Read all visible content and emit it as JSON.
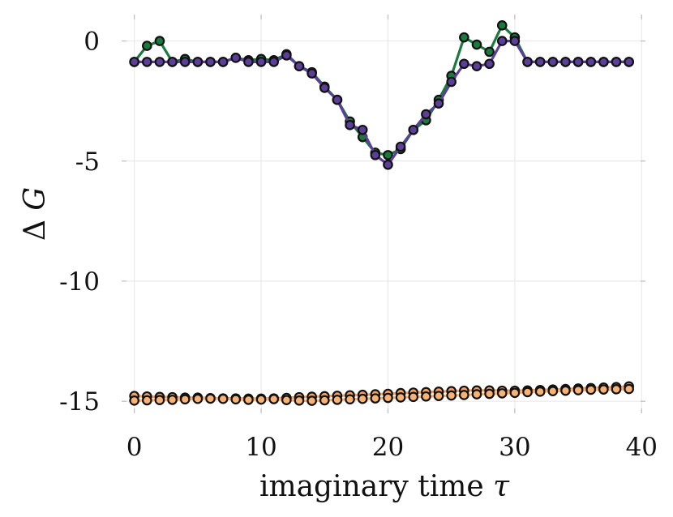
{
  "chart_data": {
    "type": "line",
    "title": "",
    "xlabel": "imaginary time",
    "xlabel_symbol": "τ",
    "ylabel_prefix": "Δ",
    "ylabel_symbol": "G",
    "xlim": [
      -1,
      40.3
    ],
    "ylim": [
      -15.5,
      1.1
    ],
    "grid": true,
    "legend": "none",
    "xticks": [
      0,
      10,
      20,
      30,
      40
    ],
    "xtick_labels": [
      "0",
      "10",
      "20",
      "30",
      "40"
    ],
    "yticks": [
      0,
      -5,
      -10,
      -15
    ],
    "ytick_labels": [
      "0",
      "-5",
      "-10",
      "-15"
    ],
    "series": [
      {
        "color": "#1a7a3e",
        "x": [
          0,
          1,
          2,
          3,
          4,
          5,
          6,
          7,
          8,
          9,
          10,
          11,
          12,
          13,
          14,
          15,
          16,
          17,
          18,
          19,
          20,
          21,
          22,
          23,
          24,
          25,
          26,
          27,
          28,
          29,
          30,
          31,
          32,
          33,
          34,
          35,
          36,
          37,
          38,
          39
        ],
        "values": [
          -0.87,
          -0.2,
          0.0,
          -0.87,
          -0.75,
          -0.87,
          -0.87,
          -0.87,
          -0.7,
          -0.8,
          -0.75,
          -0.8,
          -0.55,
          -1.05,
          -1.3,
          -1.9,
          -2.45,
          -3.35,
          -4.0,
          -4.65,
          -4.75,
          -4.5,
          -3.7,
          -3.3,
          -2.45,
          -1.45,
          0.15,
          -0.15,
          -0.45,
          0.65,
          0.15,
          -0.87,
          -0.87,
          -0.87,
          -0.87,
          -0.87,
          -0.87,
          -0.87,
          -0.87,
          -0.87
        ]
      },
      {
        "color": "#5b3f99",
        "x": [
          0,
          1,
          2,
          3,
          4,
          5,
          6,
          7,
          8,
          9,
          10,
          11,
          12,
          13,
          14,
          15,
          16,
          17,
          18,
          19,
          20,
          21,
          22,
          23,
          24,
          25,
          26,
          27,
          28,
          29,
          30,
          31,
          32,
          33,
          34,
          35,
          36,
          37,
          38,
          39
        ],
        "values": [
          -0.87,
          -0.87,
          -0.87,
          -0.87,
          -0.87,
          -0.87,
          -0.87,
          -0.87,
          -0.7,
          -0.87,
          -0.87,
          -0.87,
          -0.6,
          -1.05,
          -1.35,
          -1.95,
          -2.45,
          -3.5,
          -3.7,
          -4.75,
          -5.15,
          -4.4,
          -3.7,
          -3.05,
          -2.6,
          -1.7,
          -0.95,
          -1.05,
          -0.95,
          0.0,
          0.0,
          -0.87,
          -0.87,
          -0.87,
          -0.87,
          -0.87,
          -0.87,
          -0.87,
          -0.87,
          -0.87
        ]
      },
      {
        "color": "#f4a064",
        "x": [
          0,
          1,
          2,
          3,
          4,
          5,
          6,
          7,
          8,
          9,
          10,
          11,
          12,
          13,
          14,
          15,
          16,
          17,
          18,
          19,
          20,
          21,
          22,
          23,
          24,
          25,
          26,
          27,
          28,
          29,
          30,
          31,
          32,
          33,
          34,
          35,
          36,
          37,
          38,
          39
        ],
        "values": [
          -14.78,
          -14.8,
          -14.82,
          -14.83,
          -14.85,
          -14.85,
          -14.87,
          -14.88,
          -14.88,
          -14.89,
          -14.89,
          -14.88,
          -14.86,
          -14.83,
          -14.81,
          -14.79,
          -14.77,
          -14.75,
          -14.73,
          -14.71,
          -14.69,
          -14.66,
          -14.64,
          -14.62,
          -14.6,
          -14.58,
          -14.56,
          -14.55,
          -14.55,
          -14.56,
          -14.56,
          -14.55,
          -14.53,
          -14.51,
          -14.49,
          -14.47,
          -14.45,
          -14.43,
          -14.41,
          -14.38
        ]
      },
      {
        "color": "#f7b276",
        "x": [
          0,
          1,
          2,
          3,
          4,
          5,
          6,
          7,
          8,
          9,
          10,
          11,
          12,
          13,
          14,
          15,
          16,
          17,
          18,
          19,
          20,
          21,
          22,
          23,
          24,
          25,
          26,
          27,
          28,
          29,
          30,
          31,
          32,
          33,
          34,
          35,
          36,
          37,
          38,
          39
        ],
        "values": [
          -14.97,
          -14.96,
          -14.95,
          -14.94,
          -14.92,
          -14.9,
          -14.89,
          -14.9,
          -14.92,
          -14.94,
          -14.93,
          -14.91,
          -14.95,
          -14.97,
          -14.98,
          -14.96,
          -14.94,
          -14.92,
          -14.9,
          -14.88,
          -14.86,
          -14.84,
          -14.82,
          -14.8,
          -14.78,
          -14.76,
          -14.74,
          -14.71,
          -14.69,
          -14.67,
          -14.65,
          -14.62,
          -14.6,
          -14.58,
          -14.56,
          -14.54,
          -14.52,
          -14.51,
          -14.5,
          -14.49
        ]
      }
    ]
  }
}
